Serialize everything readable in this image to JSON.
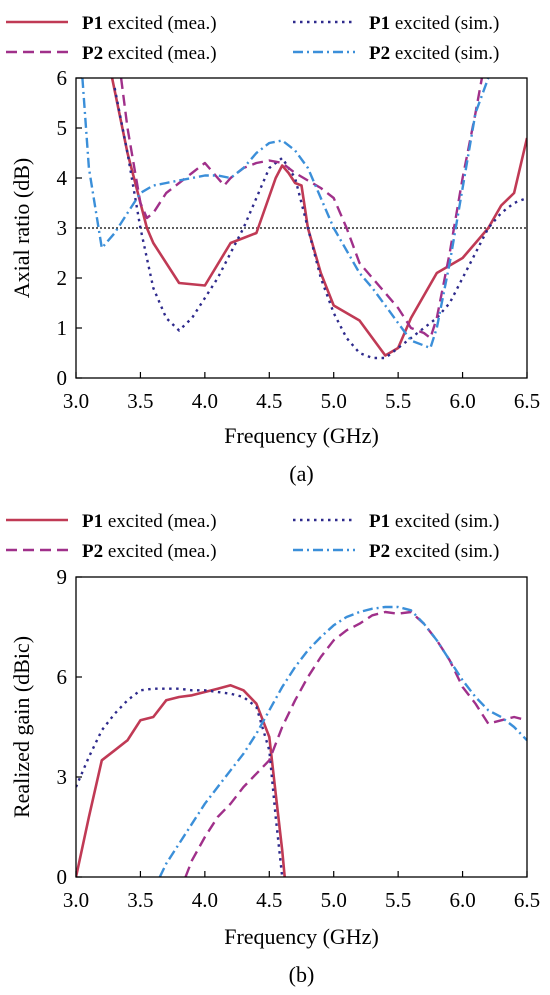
{
  "chart_data": [
    {
      "type": "line",
      "panel_label": "(a)",
      "xlabel": "Frequency (GHz)",
      "ylabel": "Axial ratio (dB)",
      "xlim": [
        3.0,
        6.5
      ],
      "ylim": [
        0,
        6
      ],
      "xticks": [
        "3.0",
        "3.5",
        "4.0",
        "4.5",
        "5.0",
        "5.5",
        "6.0",
        "6.5"
      ],
      "yticks": [
        "0",
        "1",
        "2",
        "3",
        "4",
        "5",
        "6"
      ],
      "reference_line": 3,
      "legend": [
        {
          "bold": "P1",
          "text": " excited (mea.)",
          "series": 0
        },
        {
          "bold": "P1",
          "text": " excited (sim.)",
          "series": 1
        },
        {
          "bold": "P2",
          "text": " excited (mea.)",
          "series": 2
        },
        {
          "bold": "P2",
          "text": " excited (sim.)",
          "series": 3
        }
      ],
      "series": [
        {
          "color": "#c03a55",
          "style": "solid",
          "x": [
            3.28,
            3.4,
            3.55,
            3.6,
            3.8,
            4.0,
            4.2,
            4.3,
            4.4,
            4.55,
            4.6,
            4.65,
            4.7,
            4.75,
            4.8,
            4.9,
            5.0,
            5.2,
            5.4,
            5.5,
            5.6,
            5.8,
            5.9,
            6.0,
            6.1,
            6.2,
            6.3,
            6.4,
            6.5
          ],
          "y": [
            6.0,
            4.5,
            3.0,
            2.7,
            1.9,
            1.85,
            2.7,
            2.8,
            2.9,
            4.0,
            4.25,
            4.1,
            3.9,
            3.85,
            3.0,
            2.1,
            1.45,
            1.15,
            0.45,
            0.6,
            1.2,
            2.1,
            2.25,
            2.4,
            2.7,
            3.0,
            3.45,
            3.7,
            4.8
          ]
        },
        {
          "color": "#2e2a8c",
          "style": "dotted",
          "x": [
            3.3,
            3.4,
            3.5,
            3.6,
            3.7,
            3.8,
            3.9,
            4.0,
            4.1,
            4.2,
            4.3,
            4.4,
            4.5,
            4.6,
            4.7,
            4.8,
            4.9,
            5.0,
            5.1,
            5.2,
            5.3,
            5.4,
            5.5,
            5.6,
            5.7,
            5.8,
            5.9,
            6.0,
            6.1,
            6.2,
            6.3,
            6.4,
            6.5
          ],
          "y": [
            5.8,
            4.5,
            3.0,
            1.8,
            1.2,
            0.95,
            1.2,
            1.6,
            2.0,
            2.5,
            3.0,
            3.6,
            4.2,
            4.4,
            4.0,
            3.0,
            2.0,
            1.3,
            0.8,
            0.5,
            0.4,
            0.4,
            0.6,
            0.8,
            1.0,
            1.2,
            1.5,
            2.0,
            2.5,
            3.0,
            3.3,
            3.5,
            3.6
          ]
        },
        {
          "color": "#a0308a",
          "style": "dashed",
          "x": [
            3.35,
            3.4,
            3.5,
            3.55,
            3.6,
            3.7,
            3.8,
            3.9,
            4.0,
            4.1,
            4.15,
            4.2,
            4.3,
            4.4,
            4.5,
            4.6,
            4.7,
            4.8,
            4.9,
            5.0,
            5.1,
            5.2,
            5.3,
            5.4,
            5.5,
            5.6,
            5.7,
            5.75,
            5.8,
            5.9,
            6.0,
            6.1,
            6.15
          ],
          "y": [
            6.0,
            5.0,
            3.5,
            3.2,
            3.3,
            3.7,
            3.9,
            4.1,
            4.3,
            4.0,
            3.85,
            4.0,
            4.2,
            4.3,
            4.35,
            4.3,
            4.1,
            3.95,
            3.8,
            3.6,
            3.0,
            2.3,
            2.0,
            1.7,
            1.4,
            1.0,
            0.9,
            0.8,
            1.2,
            2.5,
            4.0,
            5.3,
            6.0
          ]
        },
        {
          "color": "#3b8fd9",
          "style": "dashdot",
          "x": [
            3.05,
            3.1,
            3.2,
            3.3,
            3.4,
            3.5,
            3.6,
            3.7,
            3.8,
            3.9,
            4.0,
            4.1,
            4.2,
            4.3,
            4.4,
            4.5,
            4.6,
            4.7,
            4.8,
            4.9,
            5.0,
            5.1,
            5.2,
            5.3,
            5.4,
            5.5,
            5.6,
            5.7,
            5.75,
            5.8,
            5.9,
            6.0,
            6.1,
            6.2
          ],
          "y": [
            6.0,
            4.2,
            2.6,
            2.9,
            3.3,
            3.7,
            3.85,
            3.9,
            3.95,
            4.0,
            4.05,
            4.05,
            4.0,
            4.2,
            4.5,
            4.7,
            4.75,
            4.55,
            4.2,
            3.6,
            3.0,
            2.55,
            2.1,
            1.8,
            1.45,
            1.1,
            0.75,
            0.65,
            0.6,
            1.0,
            2.3,
            3.8,
            5.3,
            6.0
          ]
        }
      ]
    },
    {
      "type": "line",
      "panel_label": "(b)",
      "xlabel": "Frequency (GHz)",
      "ylabel": "Realized gain (dBic)",
      "xlim": [
        3.0,
        6.5
      ],
      "ylim": [
        0,
        9
      ],
      "xticks": [
        "3.0",
        "3.5",
        "4.0",
        "4.5",
        "5.0",
        "5.5",
        "6.0",
        "6.5"
      ],
      "yticks": [
        "0",
        "3",
        "6",
        "9"
      ],
      "legend": [
        {
          "bold": "P1",
          "text": " excited (mea.)",
          "series": 0
        },
        {
          "bold": "P1",
          "text": " excited (sim.)",
          "series": 1
        },
        {
          "bold": "P2",
          "text": " excited (mea.)",
          "series": 2
        },
        {
          "bold": "P2",
          "text": " excited (sim.)",
          "series": 3
        }
      ],
      "series": [
        {
          "color": "#c03a55",
          "style": "solid",
          "x": [
            3.0,
            3.1,
            3.2,
            3.3,
            3.4,
            3.5,
            3.6,
            3.7,
            3.8,
            3.9,
            4.0,
            4.1,
            4.2,
            4.3,
            4.4,
            4.5,
            4.55,
            4.6,
            4.62
          ],
          "y": [
            0.0,
            1.8,
            3.5,
            3.8,
            4.1,
            4.7,
            4.8,
            5.3,
            5.4,
            5.45,
            5.55,
            5.65,
            5.75,
            5.6,
            5.2,
            4.2,
            2.5,
            0.8,
            0.0
          ]
        },
        {
          "color": "#2e2a8c",
          "style": "dotted",
          "x": [
            3.0,
            3.1,
            3.2,
            3.3,
            3.4,
            3.5,
            3.6,
            3.7,
            3.8,
            3.9,
            4.0,
            4.1,
            4.2,
            4.3,
            4.4,
            4.5,
            4.55,
            4.6
          ],
          "y": [
            2.7,
            3.6,
            4.4,
            4.9,
            5.3,
            5.6,
            5.65,
            5.65,
            5.65,
            5.6,
            5.6,
            5.55,
            5.5,
            5.4,
            5.1,
            3.8,
            1.8,
            0.0
          ]
        },
        {
          "color": "#a0308a",
          "style": "dashed",
          "x": [
            3.85,
            3.9,
            4.0,
            4.1,
            4.2,
            4.3,
            4.4,
            4.5,
            4.6,
            4.7,
            4.8,
            4.9,
            5.0,
            5.1,
            5.2,
            5.3,
            5.4,
            5.5,
            5.6,
            5.7,
            5.8,
            5.9,
            6.0,
            6.1,
            6.2,
            6.3,
            6.4,
            6.5
          ],
          "y": [
            0.0,
            0.5,
            1.2,
            1.8,
            2.2,
            2.7,
            3.1,
            3.5,
            4.5,
            5.3,
            6.0,
            6.6,
            7.1,
            7.4,
            7.6,
            7.85,
            7.95,
            7.9,
            7.95,
            7.6,
            7.1,
            6.5,
            5.7,
            5.2,
            4.6,
            4.7,
            4.8,
            4.7
          ]
        },
        {
          "color": "#3b8fd9",
          "style": "dashdot",
          "x": [
            3.65,
            3.7,
            3.8,
            3.9,
            4.0,
            4.1,
            4.2,
            4.3,
            4.4,
            4.5,
            4.6,
            4.7,
            4.8,
            4.9,
            5.0,
            5.1,
            5.2,
            5.3,
            5.4,
            5.5,
            5.6,
            5.7,
            5.8,
            5.9,
            6.0,
            6.1,
            6.2,
            6.3,
            6.4,
            6.5
          ],
          "y": [
            0.0,
            0.4,
            1.0,
            1.6,
            2.2,
            2.7,
            3.2,
            3.7,
            4.3,
            5.0,
            5.7,
            6.3,
            6.8,
            7.2,
            7.55,
            7.8,
            7.95,
            8.05,
            8.1,
            8.1,
            8.0,
            7.6,
            7.1,
            6.5,
            5.9,
            5.4,
            5.0,
            4.8,
            4.5,
            4.1
          ]
        }
      ]
    }
  ]
}
